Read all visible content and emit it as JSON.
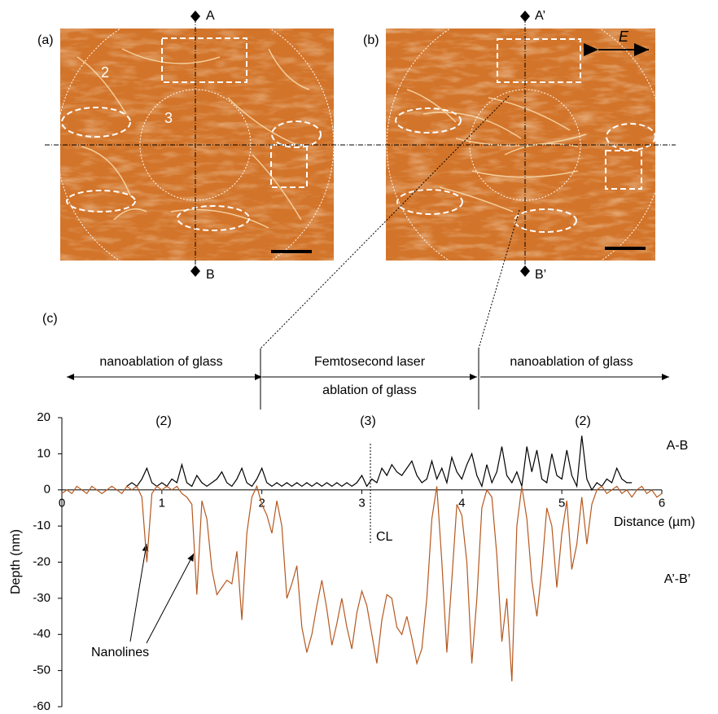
{
  "figure": {
    "panel_a_label": "(a)",
    "panel_b_label": "(b)",
    "panel_c_label": "(c)",
    "region_outer": "2",
    "region_inner": "3",
    "point_a": "A",
    "point_b": "B",
    "point_a2": "A’",
    "point_b2": "B’",
    "field": "E"
  },
  "chart_data": {
    "type": "line",
    "x_label": "Distance (µm)",
    "y_label": "Depth (nm)",
    "xlim": [
      0,
      6
    ],
    "ylim": [
      -60,
      20
    ],
    "xticks": [
      0,
      1,
      2,
      3,
      4,
      5,
      6
    ],
    "yticks": [
      -60,
      -50,
      -40,
      -30,
      -20,
      -10,
      0,
      10,
      20
    ],
    "annotations": [
      "nanoablation of glass",
      "Femtosecond laser",
      "ablation of glass",
      "nanoablation of glass",
      "(2)",
      "(3)",
      "(2)",
      "CL",
      "Nanolines"
    ],
    "x": [
      0,
      0.05,
      0.1,
      0.15,
      0.2,
      0.25,
      0.3,
      0.35,
      0.4,
      0.45,
      0.5,
      0.55,
      0.6,
      0.65,
      0.7,
      0.75,
      0.8,
      0.85,
      0.9,
      0.95,
      1,
      1.05,
      1.1,
      1.15,
      1.2,
      1.25,
      1.3,
      1.35,
      1.4,
      1.45,
      1.5,
      1.55,
      1.6,
      1.65,
      1.7,
      1.75,
      1.8,
      1.85,
      1.9,
      1.95,
      2,
      2.05,
      2.1,
      2.15,
      2.2,
      2.25,
      2.3,
      2.35,
      2.4,
      2.45,
      2.5,
      2.55,
      2.6,
      2.65,
      2.7,
      2.75,
      2.8,
      2.85,
      2.9,
      2.95,
      3,
      3.05,
      3.1,
      3.15,
      3.2,
      3.25,
      3.3,
      3.35,
      3.4,
      3.45,
      3.5,
      3.55,
      3.6,
      3.65,
      3.7,
      3.75,
      3.8,
      3.85,
      3.9,
      3.95,
      4,
      4.05,
      4.1,
      4.15,
      4.2,
      4.25,
      4.3,
      4.35,
      4.4,
      4.45,
      4.5,
      4.55,
      4.6,
      4.65,
      4.7,
      4.75,
      4.8,
      4.85,
      4.9,
      4.95,
      5,
      5.05,
      5.1,
      5.15,
      5.2,
      5.25,
      5.3,
      5.35,
      5.4,
      5.45,
      5.5,
      5.55,
      5.6,
      5.65,
      5.7,
      5.75,
      5.8,
      5.85,
      5.9,
      5.95,
      6
    ],
    "series": [
      {
        "name": "A-B",
        "color": "#000000",
        "values": [
          null,
          null,
          null,
          null,
          null,
          null,
          null,
          null,
          null,
          null,
          null,
          null,
          null,
          1,
          2,
          1,
          3,
          6,
          2,
          1,
          2,
          1,
          3,
          2,
          7,
          2,
          1,
          4,
          2,
          1,
          2,
          3,
          5,
          2,
          1,
          3,
          6,
          2,
          1,
          3,
          6,
          2,
          1,
          2,
          1,
          2,
          1,
          2,
          1,
          2,
          1,
          2,
          1,
          2,
          1,
          2,
          1,
          2,
          1,
          2,
          4,
          1,
          3,
          2,
          6,
          4,
          7,
          5,
          4,
          6,
          8,
          4,
          2,
          3,
          8,
          3,
          6,
          2,
          9,
          5,
          3,
          7,
          10,
          4,
          1,
          7,
          2,
          5,
          12,
          4,
          2,
          5,
          1,
          12,
          5,
          11,
          3,
          2,
          10,
          4,
          3,
          11,
          4,
          1,
          15,
          3,
          0,
          2,
          1,
          3,
          2,
          6,
          3,
          2,
          2,
          null,
          null,
          null,
          null,
          null,
          null
        ]
      },
      {
        "name": "A’-B’",
        "color": "#b5581f",
        "values": [
          -1,
          0,
          -1,
          1,
          0,
          -1,
          1,
          0,
          -1,
          0,
          1,
          0,
          -1,
          1,
          0,
          1,
          -2,
          -20,
          -1,
          1,
          0,
          1,
          0,
          1,
          -1,
          -2,
          -4,
          -29,
          -3,
          -8,
          -22,
          -29,
          -27,
          -25,
          -26,
          -17,
          -36,
          -12,
          -2,
          1,
          -4,
          -7,
          -12,
          -3,
          -10,
          -30,
          -26,
          -21,
          -38,
          -45,
          -40,
          -32,
          -25,
          -33,
          -43,
          -37,
          -30,
          -38,
          -44,
          -34,
          -28,
          -32,
          -40,
          -48,
          -36,
          -29,
          -30,
          -38,
          -40,
          -35,
          -41,
          -48,
          -44,
          -30,
          -8,
          1,
          -20,
          -45,
          -25,
          -4,
          -7,
          -20,
          -48,
          -30,
          -5,
          0,
          -2,
          -18,
          -42,
          -30,
          -53,
          -10,
          1,
          -8,
          -25,
          -35,
          -22,
          -5,
          -10,
          -27,
          -12,
          -3,
          -22,
          -15,
          -2,
          -15,
          -4,
          0,
          1,
          -1,
          0,
          1,
          -1,
          0,
          -2,
          0,
          1,
          -1,
          0,
          -2,
          -1
        ]
      }
    ]
  }
}
